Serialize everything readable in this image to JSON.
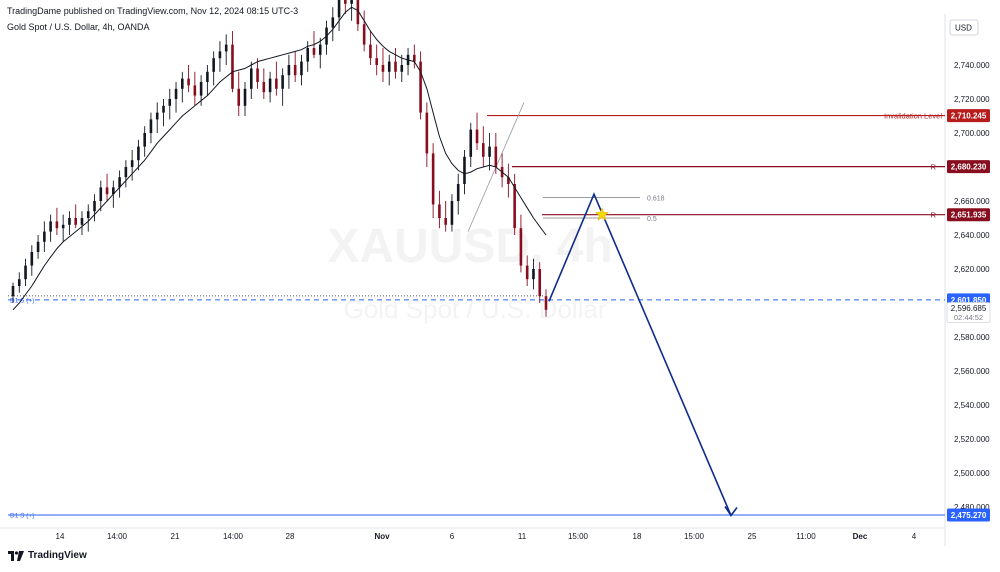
{
  "header": {
    "publisher_line": "TradingDame published on TradingView.com, Nov 12, 2024 08:15 UTC-3",
    "symbol_line": "Gold Spot / U.S. Dollar, 4h, OANDA"
  },
  "currency_label": "USD",
  "brand": "TradingView",
  "watermark": {
    "symbol": "XAUUSD, 4h",
    "name": "Gold Spot / U.S. Dollar"
  },
  "colors": {
    "up": "#131722",
    "down": "#880e1f",
    "arrow": "#0d2b8c",
    "line_red": "#b71c1c",
    "line_blue": "#2962ff"
  },
  "chart_data": {
    "type": "candlestick",
    "ylim": [
      2468,
      2788
    ],
    "y_ticks": [
      "2,740.000",
      "2,720.000",
      "2,700.000",
      "2,680.000",
      "2,660.000",
      "2,640.000",
      "2,620.000",
      "2,600.000",
      "2,580.000",
      "2,560.000",
      "2,540.000",
      "2,520.000",
      "2,500.000",
      "2,480.000"
    ],
    "y_tick_values": [
      2740,
      2720,
      2700,
      2680,
      2660,
      2640,
      2620,
      2600,
      2580,
      2560,
      2540,
      2520,
      2500,
      2480
    ],
    "x_ticks": [
      "14",
      "14:00",
      "21",
      "14:00",
      "28",
      "Nov",
      "6",
      "11",
      "15:00",
      "18",
      "15:00",
      "25",
      "11:00",
      "Dec",
      "4"
    ],
    "x_tick_bold": [
      "Nov",
      "Dec"
    ],
    "candles": [
      [
        2604,
        2612,
        2600,
        2610
      ],
      [
        2610,
        2618,
        2606,
        2614
      ],
      [
        2614,
        2626,
        2610,
        2622
      ],
      [
        2622,
        2634,
        2616,
        2630
      ],
      [
        2630,
        2640,
        2626,
        2636
      ],
      [
        2636,
        2648,
        2630,
        2642
      ],
      [
        2642,
        2652,
        2636,
        2648
      ],
      [
        2648,
        2656,
        2640,
        2644
      ],
      [
        2644,
        2652,
        2636,
        2646
      ],
      [
        2646,
        2654,
        2640,
        2650
      ],
      [
        2650,
        2658,
        2644,
        2646
      ],
      [
        2646,
        2654,
        2640,
        2650
      ],
      [
        2650,
        2658,
        2642,
        2654
      ],
      [
        2654,
        2664,
        2648,
        2660
      ],
      [
        2660,
        2672,
        2654,
        2668
      ],
      [
        2668,
        2676,
        2660,
        2664
      ],
      [
        2664,
        2672,
        2656,
        2668
      ],
      [
        2668,
        2678,
        2662,
        2674
      ],
      [
        2674,
        2684,
        2668,
        2680
      ],
      [
        2680,
        2690,
        2672,
        2684
      ],
      [
        2684,
        2696,
        2678,
        2692
      ],
      [
        2692,
        2704,
        2686,
        2700
      ],
      [
        2700,
        2712,
        2694,
        2708
      ],
      [
        2708,
        2718,
        2700,
        2712
      ],
      [
        2712,
        2720,
        2704,
        2716
      ],
      [
        2716,
        2726,
        2708,
        2720
      ],
      [
        2720,
        2730,
        2712,
        2726
      ],
      [
        2726,
        2736,
        2718,
        2732
      ],
      [
        2732,
        2740,
        2724,
        2728
      ],
      [
        2728,
        2736,
        2716,
        2722
      ],
      [
        2722,
        2734,
        2716,
        2730
      ],
      [
        2730,
        2740,
        2722,
        2736
      ],
      [
        2736,
        2748,
        2728,
        2744
      ],
      [
        2744,
        2754,
        2736,
        2748
      ],
      [
        2748,
        2758,
        2740,
        2752
      ],
      [
        2752,
        2760,
        2724,
        2726
      ],
      [
        2726,
        2736,
        2710,
        2716
      ],
      [
        2716,
        2730,
        2710,
        2726
      ],
      [
        2726,
        2742,
        2720,
        2738
      ],
      [
        2738,
        2744,
        2726,
        2730
      ],
      [
        2730,
        2738,
        2720,
        2724
      ],
      [
        2724,
        2736,
        2718,
        2732
      ],
      [
        2732,
        2742,
        2722,
        2726
      ],
      [
        2726,
        2738,
        2716,
        2734
      ],
      [
        2734,
        2746,
        2726,
        2740
      ],
      [
        2740,
        2748,
        2730,
        2734
      ],
      [
        2734,
        2746,
        2728,
        2742
      ],
      [
        2742,
        2754,
        2736,
        2750
      ],
      [
        2750,
        2760,
        2744,
        2746
      ],
      [
        2746,
        2756,
        2738,
        2752
      ],
      [
        2752,
        2766,
        2746,
        2762
      ],
      [
        2762,
        2774,
        2754,
        2768
      ],
      [
        2768,
        2786,
        2760,
        2780
      ],
      [
        2780,
        2790,
        2770,
        2776
      ],
      [
        2776,
        2786,
        2766,
        2782
      ],
      [
        2782,
        2790,
        2760,
        2764
      ],
      [
        2764,
        2772,
        2748,
        2752
      ],
      [
        2752,
        2760,
        2740,
        2744
      ],
      [
        2744,
        2752,
        2734,
        2740
      ],
      [
        2740,
        2750,
        2730,
        2736
      ],
      [
        2736,
        2746,
        2728,
        2742
      ],
      [
        2742,
        2750,
        2732,
        2736
      ],
      [
        2736,
        2746,
        2730,
        2740
      ],
      [
        2740,
        2750,
        2734,
        2746
      ],
      [
        2746,
        2752,
        2738,
        2742
      ],
      [
        2742,
        2748,
        2708,
        2712
      ],
      [
        2712,
        2718,
        2680,
        2688
      ],
      [
        2688,
        2694,
        2650,
        2658
      ],
      [
        2658,
        2666,
        2644,
        2650
      ],
      [
        2650,
        2660,
        2642,
        2646
      ],
      [
        2646,
        2664,
        2642,
        2660
      ],
      [
        2660,
        2676,
        2652,
        2670
      ],
      [
        2670,
        2690,
        2664,
        2686
      ],
      [
        2686,
        2706,
        2680,
        2702
      ],
      [
        2702,
        2712,
        2690,
        2694
      ],
      [
        2694,
        2704,
        2680,
        2686
      ],
      [
        2686,
        2700,
        2678,
        2692
      ],
      [
        2692,
        2700,
        2676,
        2680
      ],
      [
        2680,
        2688,
        2668,
        2674
      ],
      [
        2674,
        2682,
        2662,
        2670
      ],
      [
        2670,
        2676,
        2640,
        2644
      ],
      [
        2644,
        2652,
        2618,
        2622
      ],
      [
        2622,
        2628,
        2610,
        2614
      ],
      [
        2614,
        2626,
        2608,
        2620
      ],
      [
        2620,
        2624,
        2600,
        2604
      ],
      [
        2604,
        2608,
        2592,
        2596
      ]
    ],
    "moving_average": [
      2596,
      2600,
      2605,
      2610,
      2616,
      2622,
      2627,
      2632,
      2636,
      2639,
      2642,
      2645,
      2648,
      2652,
      2656,
      2660,
      2664,
      2668,
      2672,
      2676,
      2680,
      2684,
      2689,
      2694,
      2698,
      2702,
      2706,
      2710,
      2713,
      2716,
      2719,
      2722,
      2726,
      2730,
      2733,
      2736,
      2737,
      2738,
      2740,
      2742,
      2743,
      2744,
      2745,
      2746,
      2747,
      2748,
      2749,
      2751,
      2752,
      2754,
      2757,
      2761,
      2766,
      2771,
      2774,
      2772,
      2766,
      2760,
      2755,
      2751,
      2748,
      2746,
      2744,
      2743,
      2742,
      2736,
      2726,
      2712,
      2698,
      2688,
      2682,
      2678,
      2676,
      2677,
      2679,
      2680,
      2681,
      2680,
      2677,
      2674,
      2668,
      2662,
      2656,
      2650,
      2645,
      2640
    ],
    "levels": [
      {
        "label": "Invalidation Level",
        "value": 2710.245,
        "price": "2,710.245",
        "color": "#b71c1c"
      },
      {
        "label": "R",
        "value": 2680.23,
        "price": "2,680.230",
        "color": "#880e1f"
      },
      {
        "label": "R",
        "value": 2651.935,
        "price": "2,651.935",
        "color": "#880e1f"
      },
      {
        "label": "D1 S (+)",
        "value": 2601.85,
        "price": "2,601.850",
        "color": "#2962ff"
      },
      {
        "label": "D1 S (+)",
        "value": 2475.27,
        "price": "2,475.270",
        "color": "#2962ff"
      }
    ],
    "fib_levels": [
      {
        "label": "0.618",
        "value": 2662
      },
      {
        "label": "0.5",
        "value": 2650
      }
    ],
    "current_price": {
      "price": "2,596.685",
      "countdown": "02:44:52",
      "value": 2596.685
    },
    "projection": [
      [
        2601,
        "start"
      ],
      [
        2664,
        "peak"
      ],
      [
        2475,
        "target"
      ]
    ]
  }
}
